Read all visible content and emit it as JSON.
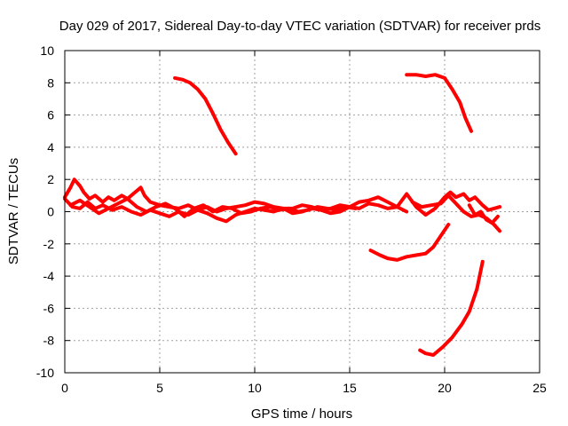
{
  "chart_data": {
    "type": "line",
    "title": "Day 029 of 2017, Sidereal Day-to-day VTEC variation (SDTVAR) for receiver prds",
    "xlabel": "GPS time / hours",
    "ylabel": "SDTVAR / TECUs",
    "xlim": [
      0,
      25
    ],
    "ylim": [
      -10,
      10
    ],
    "x_ticks": [
      0,
      5,
      10,
      15,
      20,
      25
    ],
    "y_ticks": [
      -10,
      -8,
      -6,
      -4,
      -2,
      0,
      2,
      4,
      6,
      8,
      10
    ],
    "grid": true,
    "legend": "none",
    "series_color": "#ff0000",
    "series": [
      {
        "x": [
          0.0,
          0.3,
          0.5,
          0.8,
          1.0,
          1.3,
          1.6,
          2.0,
          2.3,
          2.6,
          3.0,
          3.3,
          3.6,
          4.0,
          4.2,
          4.5,
          5.0,
          5.5,
          6.0,
          6.5,
          7.0,
          7.5,
          8.0,
          8.5,
          9.0,
          9.5,
          10.0,
          10.5,
          11.0,
          11.5,
          12.0,
          12.5,
          13.0,
          13.5,
          14.0,
          14.5,
          15.0,
          15.5,
          16.0,
          16.5,
          17.0,
          17.5,
          18.0,
          18.5,
          19.0,
          19.5,
          20.0,
          20.3,
          20.6,
          21.0,
          21.3,
          21.6,
          22.0,
          22.3,
          22.6,
          22.9
        ],
        "y": [
          0.9,
          1.5,
          2.0,
          1.6,
          1.2,
          0.8,
          1.0,
          0.6,
          0.9,
          0.7,
          1.0,
          0.8,
          1.1,
          1.5,
          1.0,
          0.6,
          0.4,
          0.3,
          0.2,
          0.4,
          0.1,
          0.3,
          0.0,
          0.2,
          0.3,
          0.4,
          0.6,
          0.5,
          0.3,
          0.2,
          0.2,
          0.4,
          0.3,
          0.1,
          0.2,
          0.4,
          0.3,
          0.6,
          0.7,
          0.9,
          0.6,
          0.3,
          1.1,
          0.3,
          -0.2,
          0.2,
          0.9,
          1.2,
          0.9,
          1.1,
          0.7,
          0.9,
          0.4,
          0.1,
          0.2,
          0.3
        ]
      },
      {
        "x": [
          0.0,
          0.4,
          0.8,
          1.2,
          1.6,
          2.0,
          2.5,
          3.0,
          3.5,
          4.0,
          4.5,
          5.0,
          5.5,
          6.0,
          6.5,
          7.0,
          7.5,
          8.0,
          8.5,
          9.0,
          9.5,
          10.0,
          10.5,
          11.0,
          11.5,
          12.0,
          12.5,
          13.0,
          13.5,
          14.0,
          14.5,
          15.0,
          15.5,
          16.0,
          16.5,
          17.0,
          17.5,
          18.0
        ],
        "y": [
          0.8,
          0.3,
          0.2,
          0.6,
          0.2,
          0.4,
          0.1,
          0.3,
          0.0,
          -0.2,
          0.1,
          -0.1,
          -0.3,
          0.0,
          -0.2,
          0.1,
          -0.1,
          -0.4,
          -0.6,
          -0.2,
          0.0,
          0.2,
          0.1,
          0.0,
          0.2,
          -0.1,
          0.0,
          0.2,
          0.1,
          -0.1,
          0.0,
          0.3,
          0.2,
          0.5,
          0.4,
          0.2,
          0.3,
          0.0
        ]
      },
      {
        "x": [
          0.3,
          0.8,
          1.3,
          1.8,
          2.3,
          2.8,
          3.3,
          3.8,
          4.3,
          4.8,
          5.3,
          5.8,
          6.3,
          6.8,
          7.3,
          7.8,
          8.3,
          8.8,
          9.3,
          9.8,
          10.3,
          10.8,
          11.3,
          11.8,
          12.3,
          12.8,
          13.3,
          13.8,
          14.3,
          14.8,
          15.3
        ],
        "y": [
          0.4,
          0.7,
          0.3,
          -0.1,
          0.2,
          0.5,
          0.8,
          0.3,
          0.0,
          0.3,
          0.5,
          0.2,
          -0.3,
          0.2,
          0.4,
          0.0,
          0.3,
          0.2,
          -0.1,
          0.0,
          0.2,
          0.3,
          0.1,
          0.2,
          0.0,
          0.1,
          0.3,
          0.2,
          0.1,
          0.3,
          0.2
        ]
      },
      {
        "x": [
          18.3,
          18.8,
          19.3,
          19.8,
          20.2,
          20.6,
          21.0,
          21.4,
          21.8,
          22.2,
          22.6,
          22.9
        ],
        "y": [
          0.6,
          0.3,
          0.4,
          0.5,
          1.0,
          0.5,
          0.0,
          -0.3,
          -0.2,
          -0.4,
          -0.8,
          -1.2
        ]
      },
      {
        "x": [
          21.3,
          21.6,
          21.9,
          22.2,
          22.5,
          22.8
        ],
        "y": [
          0.4,
          -0.2,
          0.0,
          -0.5,
          -0.7,
          -0.3
        ]
      },
      {
        "x": [
          5.8,
          6.2,
          6.6,
          7.0,
          7.4,
          7.8,
          8.2,
          8.6,
          9.0
        ],
        "y": [
          8.3,
          8.2,
          8.0,
          7.6,
          7.0,
          6.1,
          5.1,
          4.3,
          3.6
        ]
      },
      {
        "x": [
          18.0,
          18.5,
          19.0,
          19.5,
          20.0,
          20.4,
          20.8,
          21.1,
          21.4
        ],
        "y": [
          8.5,
          8.5,
          8.4,
          8.5,
          8.3,
          7.6,
          6.8,
          5.8,
          5.0
        ]
      },
      {
        "x": [
          16.1,
          16.6,
          17.0,
          17.5,
          18.0,
          18.5,
          19.0,
          19.4,
          19.8,
          20.2
        ],
        "y": [
          -2.4,
          -2.7,
          -2.9,
          -3.0,
          -2.8,
          -2.7,
          -2.6,
          -2.2,
          -1.5,
          -0.8
        ]
      },
      {
        "x": [
          18.7,
          19.0,
          19.4,
          19.9,
          20.4,
          20.9,
          21.3,
          21.7,
          22.0
        ],
        "y": [
          -8.6,
          -8.8,
          -8.9,
          -8.4,
          -7.8,
          -7.0,
          -6.2,
          -4.8,
          -3.1
        ]
      }
    ]
  }
}
